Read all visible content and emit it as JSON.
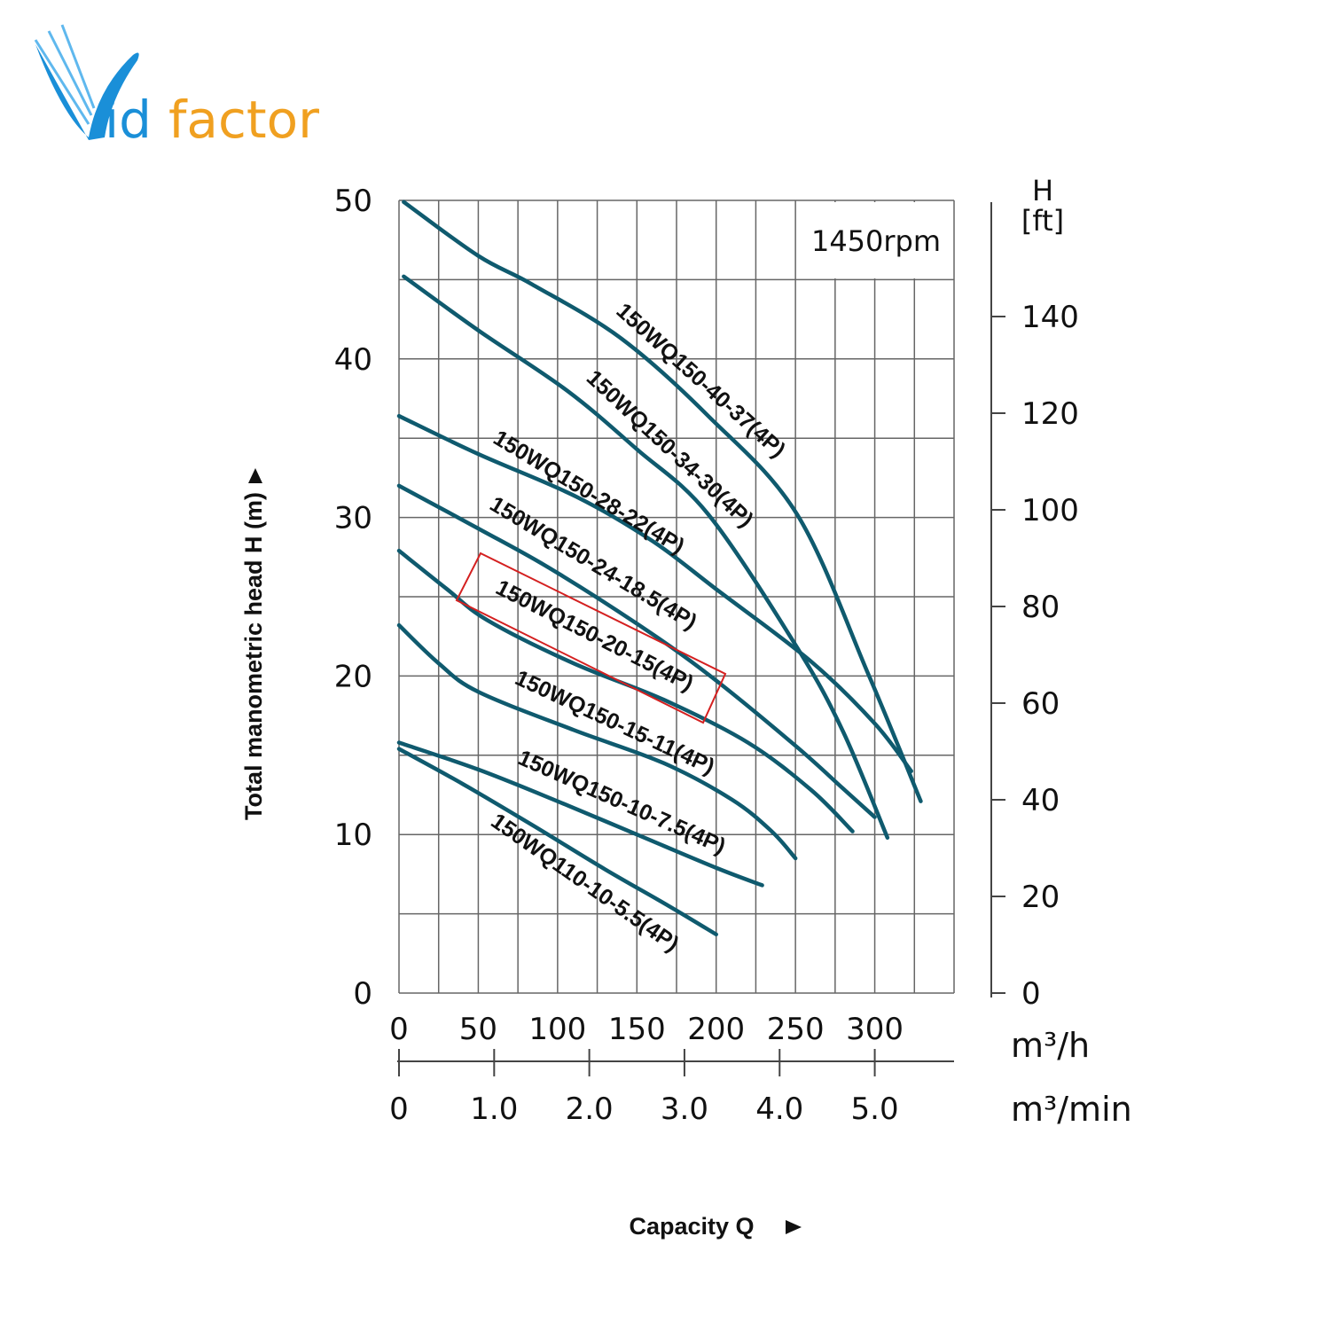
{
  "logo": {
    "text": "Vidfactor",
    "part1": "id",
    "part2": "factor"
  },
  "colors": {
    "curve": "#0f5a6e",
    "grid": "#555555",
    "highlight": "#d42020",
    "logo_blue": "#1a8fd8",
    "logo_orange": "#f0a020"
  },
  "chart_data": {
    "type": "line",
    "annotation": "1450rpm",
    "ylabel": "Total manometric head H (m)",
    "xlabel": "Capacity Q",
    "y_ticks": [
      "0",
      "10",
      "20",
      "30",
      "40",
      "50"
    ],
    "ylim": [
      0,
      50
    ],
    "y2_label_line1": "H",
    "y2_label_line2": "[ft]",
    "y2_ticks": [
      "0",
      "20",
      "40",
      "60",
      "80",
      "100",
      "120",
      "140"
    ],
    "x_ticks": [
      "0",
      "50",
      "100",
      "150",
      "200",
      "250",
      "300"
    ],
    "xlim": [
      0,
      350
    ],
    "x_unit": "m³/h",
    "x2_ticks": [
      "0",
      "1.0",
      "2.0",
      "3.0",
      "4.0",
      "5.0"
    ],
    "x2_unit": "m³/min",
    "grid": true,
    "highlighted_series": "150WQ150-20-15(4P)",
    "series": [
      {
        "name": "150WQ150-40-37(4P)",
        "x": [
          3,
          50,
          84,
          140,
          195,
          251,
          296,
          329
        ],
        "y": [
          49.9,
          46.5,
          44.7,
          41.3,
          36.4,
          30.2,
          20.1,
          12.1
        ]
      },
      {
        "name": "150WQ150-34-30(4P)",
        "x": [
          3,
          50,
          106,
          150,
          195,
          251,
          280,
          308
        ],
        "y": [
          45.2,
          41.8,
          38.0,
          34.3,
          30.2,
          21.8,
          16.5,
          9.8
        ]
      },
      {
        "name": "150WQ150-28-22(4P)",
        "x": [
          0,
          50,
          112,
          160,
          201,
          260,
          300,
          323
        ],
        "y": [
          36.4,
          34.0,
          31.3,
          28.5,
          25.4,
          20.9,
          17.0,
          14.0
        ]
      },
      {
        "name": "150WQ150-24-18.5(4P)",
        "x": [
          0,
          50,
          95,
          150,
          195,
          250,
          280,
          300
        ],
        "y": [
          32.0,
          29.3,
          26.8,
          23.3,
          20.1,
          15.6,
          12.9,
          11.1
        ]
      },
      {
        "name": "150WQ150-20-15(4P)",
        "x": [
          0,
          30,
          56,
          110,
          167,
          220,
          260,
          286
        ],
        "y": [
          27.9,
          25.5,
          23.5,
          20.8,
          18.5,
          15.8,
          12.8,
          10.2
        ]
      },
      {
        "name": "150WQ150-15-11(4P)",
        "x": [
          0,
          25,
          50,
          110,
          167,
          210,
          235,
          250
        ],
        "y": [
          23.2,
          20.8,
          19.0,
          16.6,
          14.5,
          12.2,
          10.2,
          8.5
        ]
      },
      {
        "name": "150WQ150-10-7.5(4P)",
        "x": [
          0,
          50,
          100,
          150,
          200,
          229
        ],
        "y": [
          15.8,
          14.1,
          12.1,
          10.0,
          7.9,
          6.8
        ]
      },
      {
        "name": "150WQ110-10-5.5(4P)",
        "x": [
          0,
          40,
          84,
          130,
          170,
          200
        ],
        "y": [
          15.4,
          13.2,
          10.6,
          7.8,
          5.5,
          3.7
        ]
      }
    ]
  }
}
